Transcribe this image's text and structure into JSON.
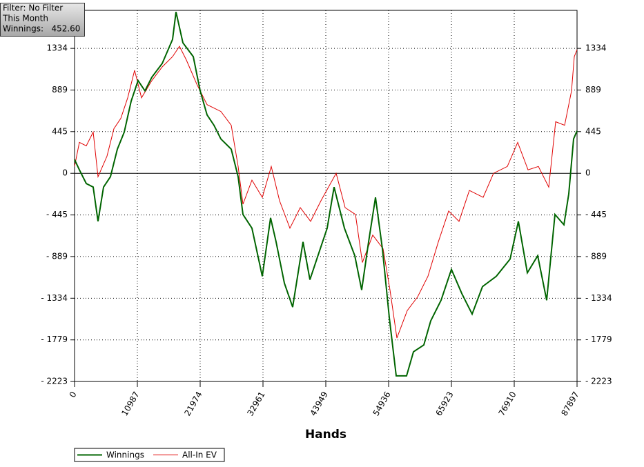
{
  "chart_data": {
    "type": "line",
    "annotations": [
      "Filter: No Filter",
      "This Month",
      "Winnings:   452.60"
    ],
    "xlabel": "Hands",
    "xlim": [
      0,
      87897
    ],
    "xticks": [
      0,
      10987,
      21974,
      32961,
      43949,
      54936,
      65923,
      76910,
      87897
    ],
    "ylim": [
      -2223,
      1740
    ],
    "yticks": [
      {
        "value": -2223,
        "label": "- 2223"
      },
      {
        "value": -1779,
        "label": "- 1779"
      },
      {
        "value": -1334,
        "label": "- 1334"
      },
      {
        "value": -889,
        "label": "- 889"
      },
      {
        "value": -445,
        "label": "- 445"
      },
      0,
      445,
      889,
      1334
    ],
    "grid": true,
    "series": [
      {
        "name": "Winnings",
        "color": "#006400",
        "x": [
          0,
          845,
          2052,
          3260,
          4105,
          5071,
          6278,
          7486,
          8693,
          9901,
          11108,
          12316,
          13523,
          15334,
          17145,
          17749,
          18957,
          20768,
          21975,
          23182,
          24390,
          25597,
          27408,
          28616,
          29461,
          31031,
          32842,
          34291,
          35256,
          36705,
          38154,
          39965,
          41173,
          42984,
          44191,
          45398,
          47209,
          49020,
          50228,
          51435,
          52642,
          53850,
          55057,
          56264,
          58075,
          59283,
          61094,
          62301,
          64112,
          65923,
          67734,
          69545,
          71355,
          73770,
          76185,
          77634,
          79203,
          81014,
          82584,
          84033,
          85602,
          86447,
          87292,
          87897
        ],
        "values": [
          147,
          37,
          -110,
          -147,
          -513,
          -147,
          -37,
          257,
          440,
          770,
          990,
          880,
          1026,
          1173,
          1430,
          1723,
          1393,
          1246,
          880,
          623,
          513,
          367,
          257,
          -37,
          -440,
          -586,
          -1100,
          -476,
          -733,
          -1173,
          -1429,
          -733,
          -1136,
          -806,
          -586,
          -147,
          -586,
          -880,
          -1246,
          -733,
          -257,
          -806,
          -1540,
          -2163,
          -2163,
          -1906,
          -1833,
          -1576,
          -1356,
          -1026,
          -1283,
          -1503,
          -1210,
          -1100,
          -916,
          -513,
          -1063,
          -880,
          -1356,
          -440,
          -550,
          -220,
          367,
          453
        ]
      },
      {
        "name": "All-In EV",
        "color": "#e00000",
        "x": [
          0,
          845,
          2052,
          3260,
          4105,
          5675,
          6882,
          8090,
          9297,
          10504,
          11712,
          13523,
          15334,
          17145,
          18353,
          19560,
          21371,
          23182,
          25597,
          27408,
          28616,
          29461,
          31031,
          32842,
          34412,
          35861,
          37672,
          39483,
          41294,
          43105,
          45761,
          47331,
          49142,
          50349,
          52160,
          53971,
          55178,
          56386,
          58197,
          60008,
          61819,
          63630,
          65441,
          67252,
          69063,
          71478,
          73289,
          75703,
          77515,
          79326,
          81137,
          82948,
          84155,
          85725,
          86932,
          87415,
          87897
        ],
        "values": [
          73,
          330,
          293,
          440,
          -37,
          183,
          476,
          586,
          806,
          1100,
          806,
          990,
          1136,
          1246,
          1356,
          1210,
          953,
          733,
          660,
          513,
          73,
          -330,
          -73,
          -257,
          73,
          -293,
          -586,
          -367,
          -513,
          -293,
          0,
          -367,
          -440,
          -953,
          -660,
          -806,
          -1246,
          -1760,
          -1466,
          -1320,
          -1100,
          -733,
          -403,
          -513,
          -183,
          -257,
          0,
          73,
          330,
          37,
          73,
          -147,
          550,
          513,
          880,
          1246,
          1320
        ]
      }
    ]
  }
}
